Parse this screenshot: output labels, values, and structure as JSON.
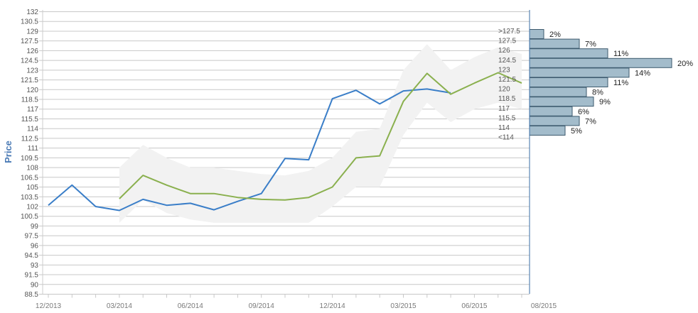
{
  "chart_data": {
    "type": "line",
    "ylabel": "Price",
    "yticks": [
      "132",
      "130.5",
      "129",
      "127.5",
      "126",
      "124.5",
      "123",
      "121.5",
      "120",
      "118.5",
      "117",
      "115.5",
      "114",
      "112.5",
      "111",
      "109.5",
      "108",
      "106.5",
      "105",
      "103.5",
      "102",
      "100.5",
      "99",
      "97.5",
      "96",
      "94.5",
      "93",
      "91.5",
      "90",
      "88.5"
    ],
    "ylim": [
      88.5,
      132
    ],
    "xlabels": [
      "12/2013",
      "03/2014",
      "06/2014",
      "09/2014",
      "12/2014",
      "03/2015",
      "06/2015",
      "08/2015"
    ],
    "series": [
      {
        "color": "#3a7ec8",
        "points": [
          [
            "2013-12",
            102.2
          ],
          [
            "2014-01",
            105.3
          ],
          [
            "2014-02",
            102
          ],
          [
            "2014-03",
            101.4
          ],
          [
            "2014-04",
            103.1
          ],
          [
            "2014-05",
            102.2
          ],
          [
            "2014-06",
            102.5
          ],
          [
            "2014-07",
            101.5
          ],
          [
            "2014-08",
            102.8
          ],
          [
            "2014-09",
            104
          ],
          [
            "2014-10",
            109.4
          ],
          [
            "2014-11",
            109.2
          ],
          [
            "2014-12",
            118.6
          ],
          [
            "2015-01",
            119.9
          ],
          [
            "2015-02",
            117.8
          ],
          [
            "2015-03",
            119.8
          ],
          [
            "2015-04",
            120.1
          ],
          [
            "2015-05",
            119.5
          ]
        ]
      },
      {
        "color": "#8ab04e",
        "points": [
          [
            "2014-03",
            103.2
          ],
          [
            "2014-04",
            106.8
          ],
          [
            "2014-05",
            105.3
          ],
          [
            "2014-06",
            104
          ],
          [
            "2014-07",
            104
          ],
          [
            "2014-08",
            103.4
          ],
          [
            "2014-09",
            103.1
          ],
          [
            "2014-10",
            103
          ],
          [
            "2014-11",
            103.4
          ],
          [
            "2014-12",
            105
          ],
          [
            "2015-01",
            109.5
          ],
          [
            "2015-02",
            109.8
          ],
          [
            "2015-03",
            118.2
          ],
          [
            "2015-04",
            122.5
          ],
          [
            "2015-05",
            119.3
          ],
          [
            "2015-06",
            121
          ],
          [
            "2015-07",
            122.6
          ],
          [
            "2015-08",
            121
          ]
        ]
      }
    ],
    "band": {
      "color": "#f2f2f2",
      "points": [
        [
          "2014-03",
          99.5,
          108
        ],
        [
          "2014-04",
          103,
          111.5
        ],
        [
          "2014-05",
          101,
          109.5
        ],
        [
          "2014-06",
          100,
          108
        ],
        [
          "2014-07",
          99.5,
          108
        ],
        [
          "2014-08",
          99.5,
          107.5
        ],
        [
          "2014-09",
          99.5,
          107
        ],
        [
          "2014-10",
          99.5,
          106.8
        ],
        [
          "2014-11",
          99.5,
          107.5
        ],
        [
          "2014-12",
          102,
          109.5
        ],
        [
          "2015-01",
          105,
          113.5
        ],
        [
          "2015-02",
          105,
          114
        ],
        [
          "2015-03",
          113,
          123
        ],
        [
          "2015-04",
          118,
          127
        ],
        [
          "2015-05",
          115,
          123
        ],
        [
          "2015-06",
          117,
          125
        ],
        [
          "2015-07",
          118,
          126.5
        ],
        [
          "2015-08",
          117,
          125.5
        ]
      ]
    },
    "histogram": {
      "color": "#a3bccb",
      "bins": [
        {
          "label": ">127.5",
          "pct": "2%",
          "value": 2
        },
        {
          "label": "127.5",
          "pct": "7%",
          "value": 7
        },
        {
          "label": "126",
          "pct": "11%",
          "value": 11
        },
        {
          "label": "124.5",
          "pct": "20%",
          "value": 20
        },
        {
          "label": "123",
          "pct": "14%",
          "value": 14
        },
        {
          "label": "121.5",
          "pct": "11%",
          "value": 11
        },
        {
          "label": "120",
          "pct": "8%",
          "value": 8
        },
        {
          "label": "118.5",
          "pct": "9%",
          "value": 9
        },
        {
          "label": "117",
          "pct": "6%",
          "value": 6
        },
        {
          "label": "115.5",
          "pct": "7%",
          "value": 7
        },
        {
          "label": "114",
          "pct": "5%",
          "value": 5
        },
        {
          "label": "<114",
          "pct": "",
          "value": 0
        }
      ]
    }
  }
}
